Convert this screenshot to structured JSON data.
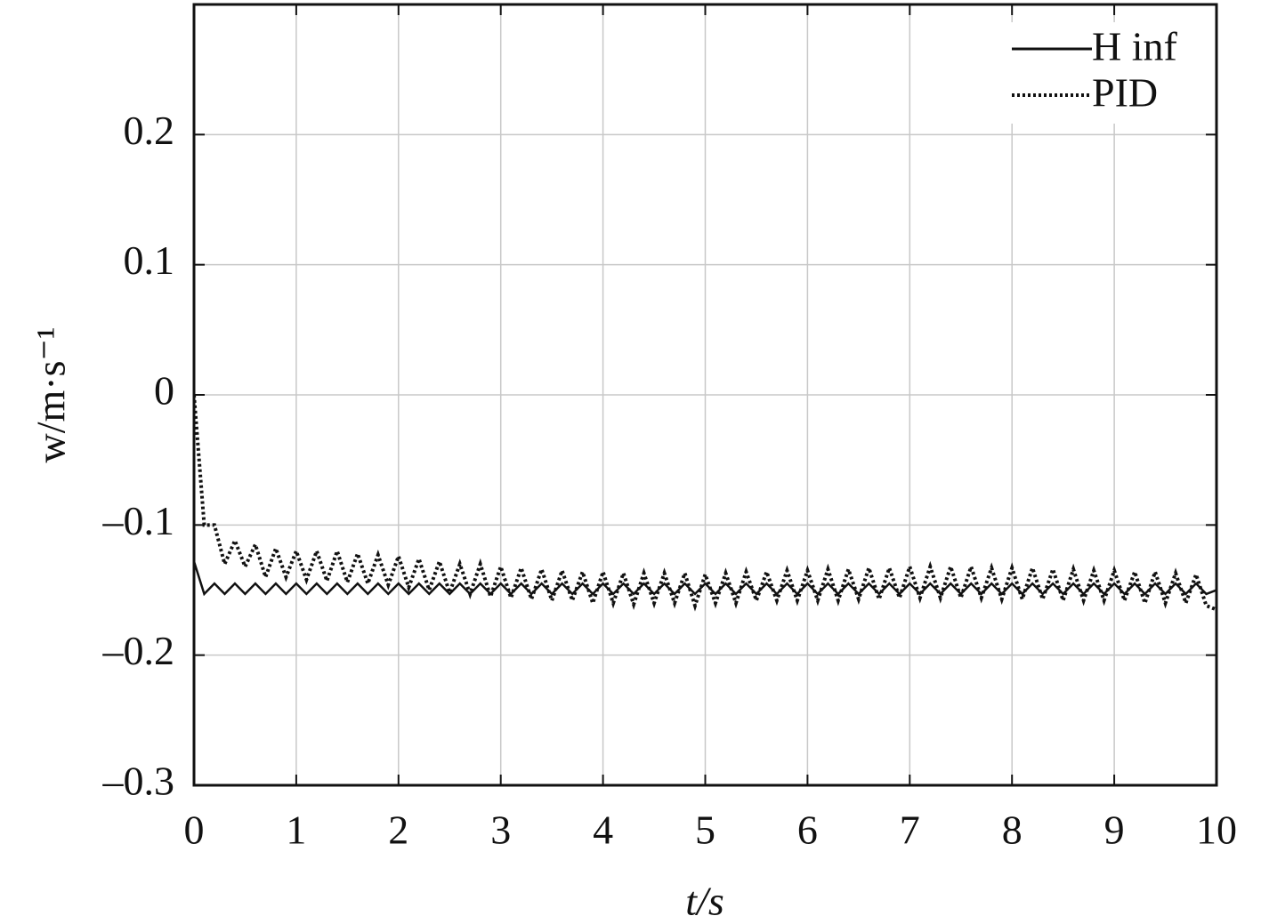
{
  "chart_data": {
    "type": "line",
    "xlabel": "t/s",
    "ylabel": "w/m·s⁻¹",
    "xlim": [
      0,
      10
    ],
    "ylim": [
      -0.3,
      0.3
    ],
    "xticks": [
      0,
      1,
      2,
      3,
      4,
      5,
      6,
      7,
      8,
      9,
      10
    ],
    "yticks": [
      {
        "value": -0.3,
        "label": "–0.3"
      },
      {
        "value": -0.2,
        "label": "–0.2"
      },
      {
        "value": -0.1,
        "label": "–0.1"
      },
      0,
      0.1,
      0.2
    ],
    "grid": true,
    "legend": "upper right",
    "x": [
      0,
      0.1,
      0.2,
      0.3,
      0.4,
      0.5,
      0.6,
      0.7,
      0.8,
      0.9,
      1,
      1.1,
      1.2,
      1.3,
      1.4,
      1.5,
      1.6,
      1.7,
      1.8,
      1.9,
      2,
      2.1,
      2.2,
      2.3,
      2.4,
      2.5,
      2.6,
      2.7,
      2.8,
      2.9,
      3,
      3.1,
      3.2,
      3.3,
      3.4,
      3.5,
      3.6,
      3.7,
      3.8,
      3.9,
      4,
      4.1,
      4.2,
      4.3,
      4.4,
      4.5,
      4.6,
      4.7,
      4.8,
      4.9,
      5,
      5.1,
      5.2,
      5.3,
      5.4,
      5.5,
      5.6,
      5.7,
      5.8,
      5.9,
      6,
      6.1,
      6.2,
      6.3,
      6.4,
      6.5,
      6.6,
      6.7,
      6.8,
      6.9,
      7,
      7.1,
      7.2,
      7.3,
      7.4,
      7.5,
      7.6,
      7.7,
      7.8,
      7.9,
      8,
      8.1,
      8.2,
      8.3,
      8.4,
      8.5,
      8.6,
      8.7,
      8.8,
      8.9,
      9,
      9.1,
      9.2,
      9.3,
      9.4,
      9.5,
      9.6,
      9.7,
      9.8,
      9.9,
      10
    ],
    "series": [
      {
        "name": "H inf",
        "color": "#111111",
        "dash": "solid",
        "values": [
          -0.128,
          -0.153,
          -0.145,
          -0.153,
          -0.145,
          -0.153,
          -0.145,
          -0.153,
          -0.145,
          -0.153,
          -0.145,
          -0.153,
          -0.145,
          -0.153,
          -0.145,
          -0.153,
          -0.145,
          -0.153,
          -0.145,
          -0.153,
          -0.145,
          -0.153,
          -0.145,
          -0.153,
          -0.145,
          -0.153,
          -0.145,
          -0.153,
          -0.145,
          -0.153,
          -0.145,
          -0.153,
          -0.145,
          -0.153,
          -0.145,
          -0.153,
          -0.145,
          -0.153,
          -0.145,
          -0.153,
          -0.145,
          -0.153,
          -0.145,
          -0.153,
          -0.145,
          -0.153,
          -0.145,
          -0.153,
          -0.145,
          -0.153,
          -0.145,
          -0.153,
          -0.145,
          -0.153,
          -0.145,
          -0.153,
          -0.145,
          -0.153,
          -0.145,
          -0.153,
          -0.145,
          -0.153,
          -0.145,
          -0.153,
          -0.145,
          -0.153,
          -0.145,
          -0.153,
          -0.145,
          -0.153,
          -0.145,
          -0.153,
          -0.145,
          -0.153,
          -0.145,
          -0.153,
          -0.145,
          -0.153,
          -0.145,
          -0.153,
          -0.145,
          -0.153,
          -0.145,
          -0.153,
          -0.145,
          -0.153,
          -0.145,
          -0.153,
          -0.145,
          -0.153,
          -0.145,
          -0.153,
          -0.145,
          -0.153,
          -0.145,
          -0.153,
          -0.145,
          -0.153,
          -0.145,
          -0.153,
          -0.15
        ]
      },
      {
        "name": "PID",
        "color": "#111111",
        "dash": "dotted",
        "values": [
          0,
          -0.1,
          -0.1,
          -0.13,
          -0.112,
          -0.132,
          -0.115,
          -0.14,
          -0.118,
          -0.14,
          -0.12,
          -0.142,
          -0.12,
          -0.143,
          -0.12,
          -0.144,
          -0.122,
          -0.145,
          -0.123,
          -0.146,
          -0.124,
          -0.148,
          -0.126,
          -0.15,
          -0.128,
          -0.152,
          -0.13,
          -0.153,
          -0.13,
          -0.155,
          -0.132,
          -0.156,
          -0.133,
          -0.157,
          -0.134,
          -0.158,
          -0.135,
          -0.158,
          -0.136,
          -0.16,
          -0.136,
          -0.16,
          -0.137,
          -0.161,
          -0.137,
          -0.16,
          -0.137,
          -0.16,
          -0.137,
          -0.162,
          -0.138,
          -0.16,
          -0.137,
          -0.16,
          -0.136,
          -0.158,
          -0.136,
          -0.158,
          -0.135,
          -0.158,
          -0.135,
          -0.158,
          -0.134,
          -0.158,
          -0.134,
          -0.157,
          -0.133,
          -0.157,
          -0.133,
          -0.156,
          -0.132,
          -0.156,
          -0.132,
          -0.156,
          -0.132,
          -0.156,
          -0.132,
          -0.156,
          -0.133,
          -0.157,
          -0.133,
          -0.157,
          -0.133,
          -0.157,
          -0.134,
          -0.158,
          -0.134,
          -0.158,
          -0.135,
          -0.158,
          -0.135,
          -0.158,
          -0.136,
          -0.16,
          -0.136,
          -0.16,
          -0.137,
          -0.16,
          -0.138,
          -0.162,
          -0.165
        ]
      }
    ]
  }
}
